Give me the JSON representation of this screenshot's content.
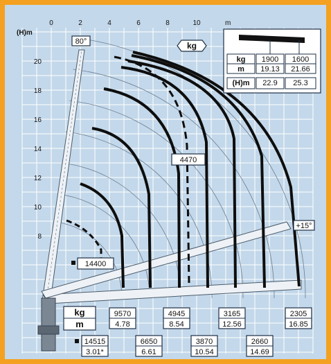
{
  "axes": {
    "x_unit": "m",
    "y_unit": "(H)m",
    "x_ticks": [
      "0",
      "2",
      "4",
      "6",
      "8",
      "10"
    ],
    "y_ticks": [
      "20",
      "18",
      "16",
      "14",
      "12",
      "10",
      "8"
    ]
  },
  "angles": {
    "max": "80°",
    "min": "+15°"
  },
  "unit_kg": "kg",
  "mid_load": "4470",
  "inner_load": "14400",
  "ext_table": {
    "kg_label": "kg",
    "m_label": "m",
    "h_label": "(H)m",
    "kg": [
      "1900",
      "1600"
    ],
    "m": [
      "19.13",
      "21.66"
    ],
    "h": [
      "22.9",
      "25.3"
    ]
  },
  "legend": {
    "kg": "kg",
    "m": "m"
  },
  "bottom_loads": [
    {
      "kg": "14515",
      "m": "3.01*"
    },
    {
      "kg": "9570",
      "m": "4.78"
    },
    {
      "kg": "6650",
      "m": "6.61"
    },
    {
      "kg": "4945",
      "m": "8.54"
    },
    {
      "kg": "3870",
      "m": "10.54"
    },
    {
      "kg": "3165",
      "m": "12.56"
    },
    {
      "kg": "2660",
      "m": "14.69"
    },
    {
      "kg": "2305",
      "m": "16.85"
    }
  ],
  "colors": {
    "frame": "#f4a020",
    "panel": "#c3d8ea",
    "curve": "#0e0e0e",
    "box_border": "#1e2f45"
  }
}
